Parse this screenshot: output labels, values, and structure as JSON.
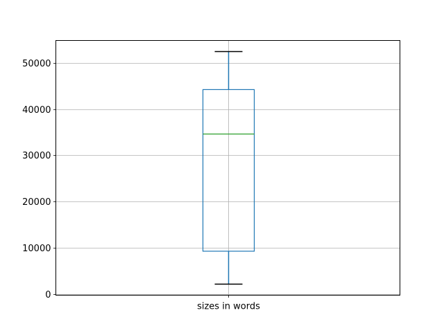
{
  "chart_data": {
    "type": "box",
    "title": "",
    "xlabel": "",
    "ylabel": "",
    "categories": [
      "sizes in words"
    ],
    "boxes": [
      {
        "label": "sizes in words",
        "whisker_low": 2200,
        "q1": 9300,
        "median": 34600,
        "q3": 44200,
        "whisker_high": 52400
      }
    ],
    "ylim": [
      -200,
      54800
    ],
    "yticks": [
      0,
      10000,
      20000,
      30000,
      40000,
      50000
    ],
    "ytick_labels": [
      "0",
      "10000",
      "20000",
      "30000",
      "40000",
      "50000"
    ],
    "grid": true,
    "colors": {
      "box": "#1f77b4",
      "median": "#2ca02c",
      "caps": "#000000",
      "grid": "#b0b0b0"
    }
  }
}
